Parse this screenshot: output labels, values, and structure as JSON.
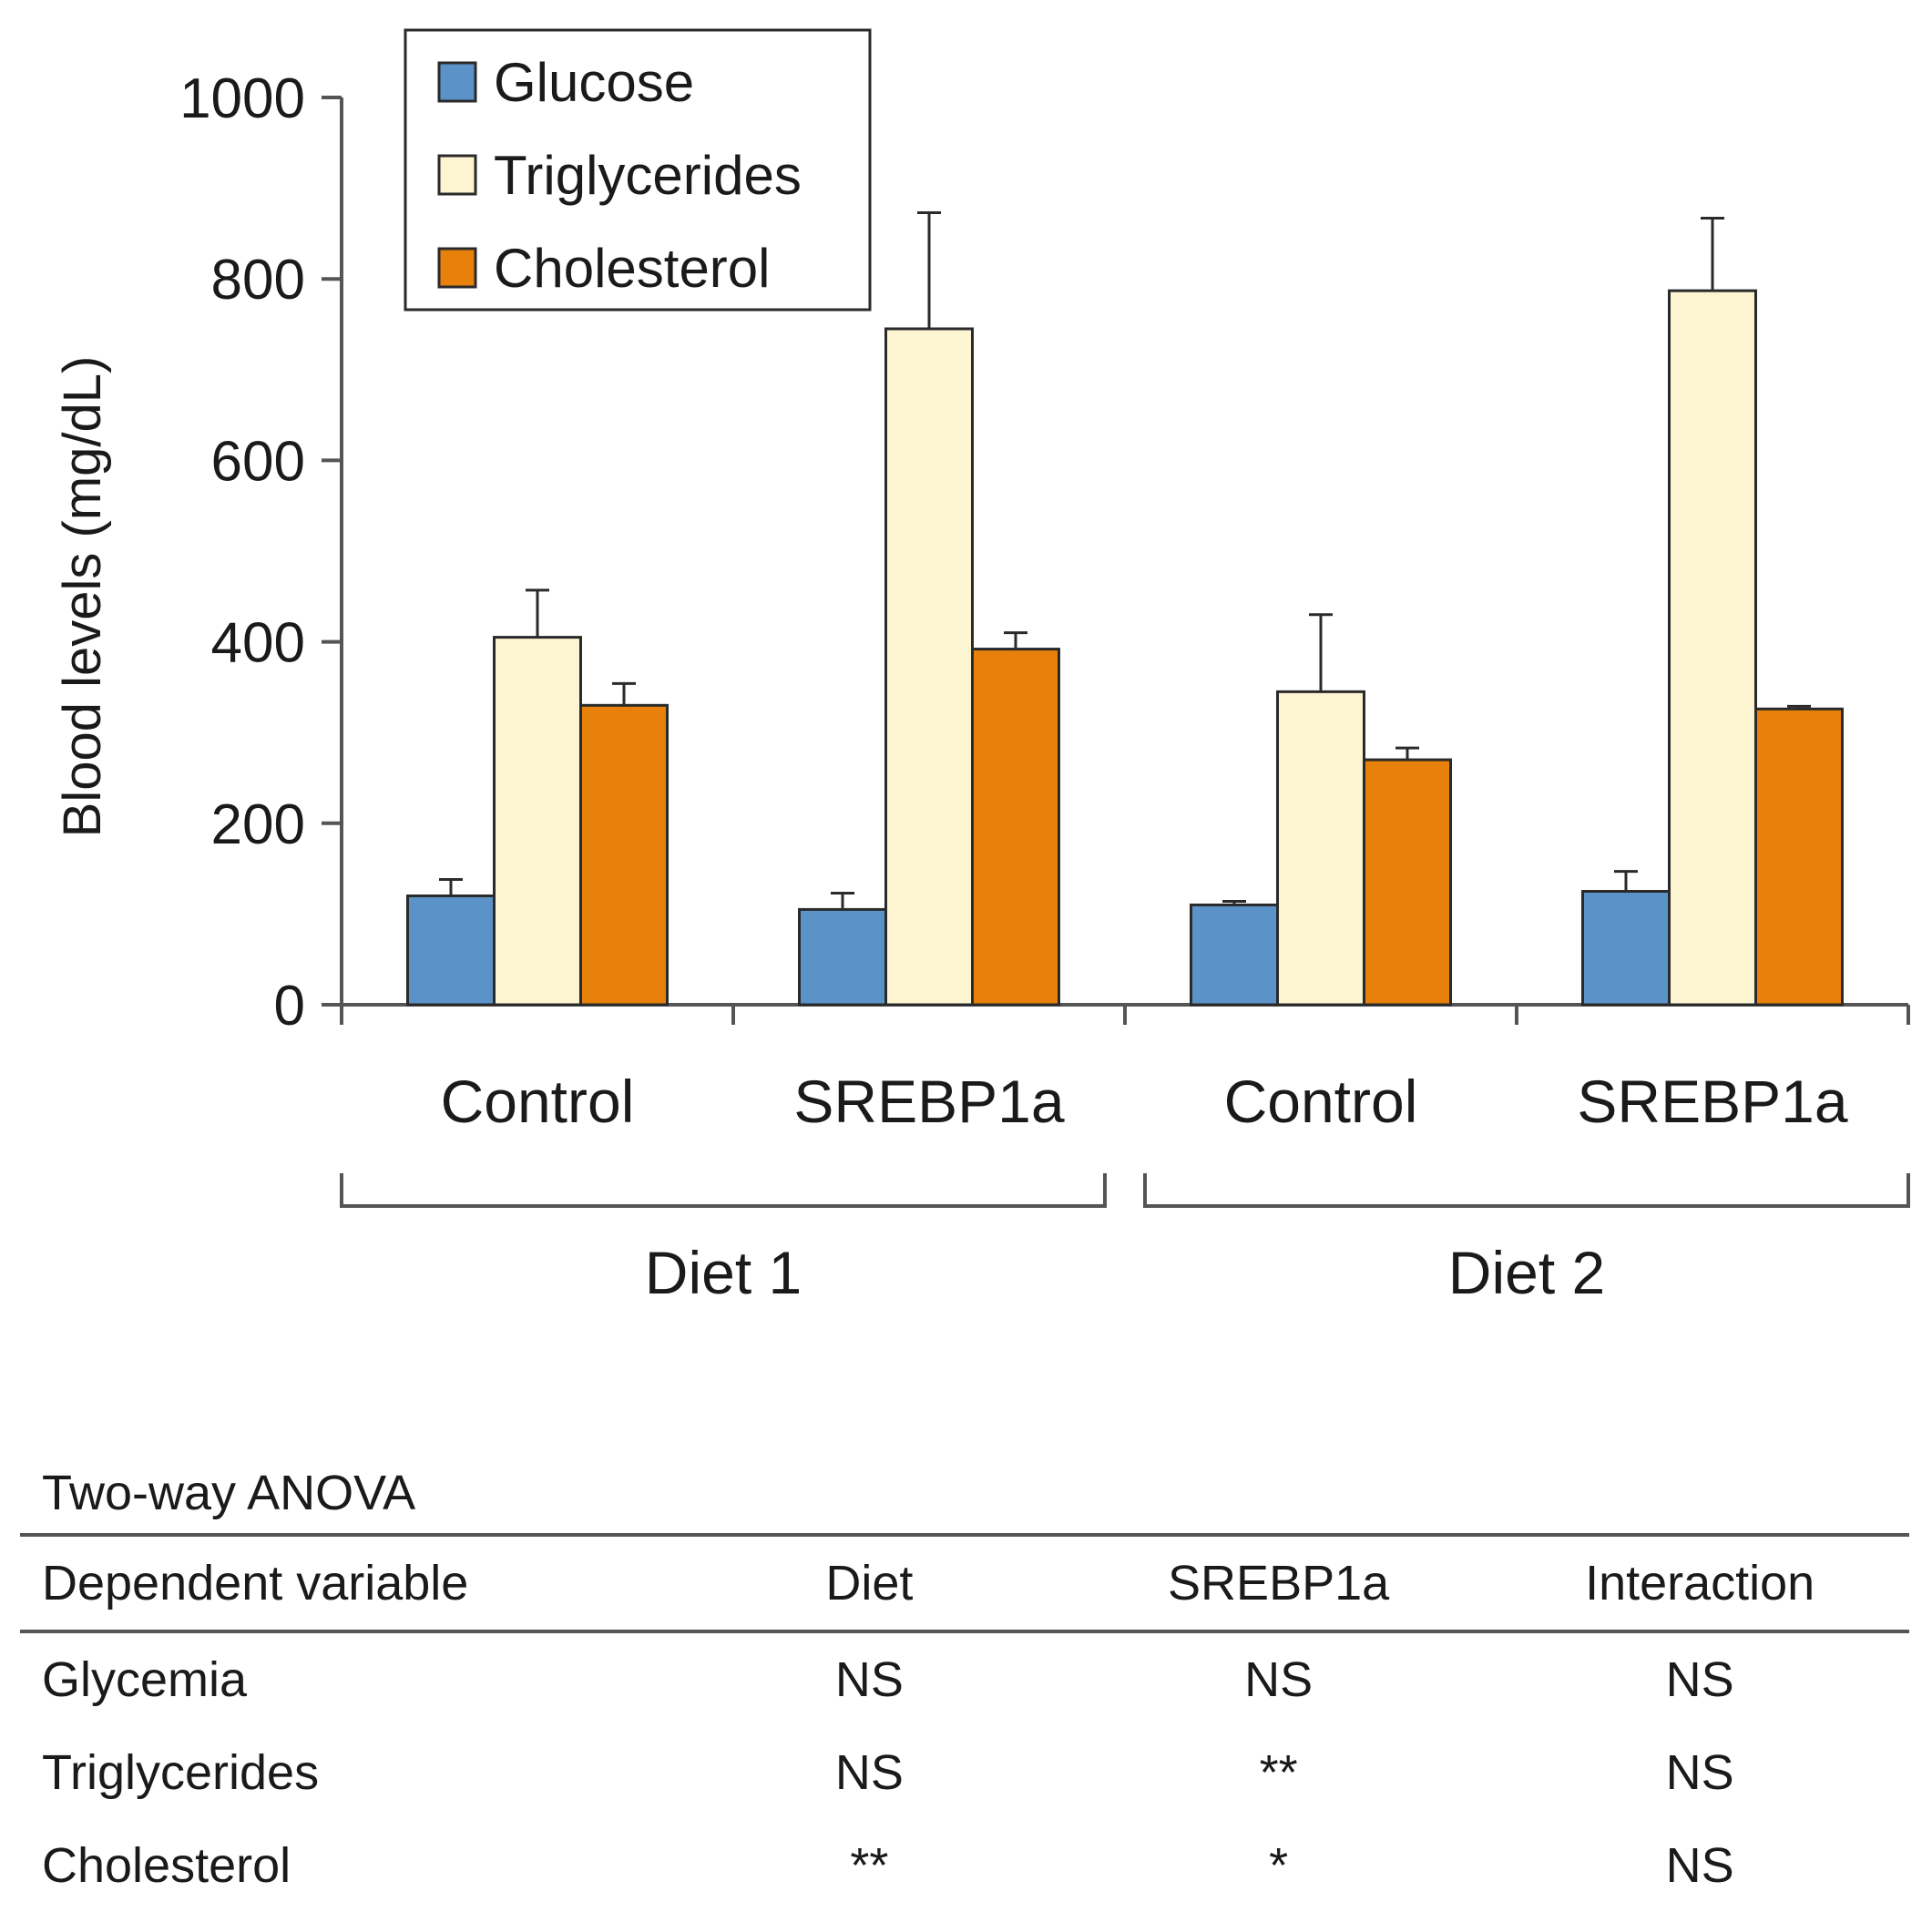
{
  "chart_data": {
    "type": "bar",
    "categories": [
      "Control",
      "SREBP1a",
      "Control",
      "SREBP1a"
    ],
    "groups": [
      {
        "label": "Diet 1",
        "categories": [
          0,
          1
        ]
      },
      {
        "label": "Diet 2",
        "categories": [
          2,
          3
        ]
      }
    ],
    "series": [
      {
        "name": "Glucose",
        "color": "#5b93c8",
        "values": [
          120,
          105,
          110,
          125
        ],
        "errors": [
          18,
          18,
          4,
          22
        ]
      },
      {
        "name": "Triglycerides",
        "color": "#fdf5d2",
        "values": [
          405,
          745,
          345,
          787
        ],
        "errors": [
          52,
          128,
          85,
          80
        ]
      },
      {
        "name": "Cholesterol",
        "color": "#e8800c",
        "values": [
          330,
          392,
          270,
          326
        ],
        "errors": [
          24,
          18,
          13,
          3
        ]
      }
    ],
    "ylabel": "Blood levels (mg/dL)",
    "ylim": [
      0,
      1000
    ],
    "yticks": [
      0,
      200,
      400,
      600,
      800,
      1000
    ],
    "legend_position": "top-left",
    "grid": false
  },
  "anova": {
    "title": "Two-way ANOVA",
    "headers": [
      "Dependent variable",
      "Diet",
      "SREBP1a",
      "Interaction"
    ],
    "rows": [
      [
        "Glycemia",
        "NS",
        "NS",
        "NS"
      ],
      [
        "Triglycerides",
        "NS",
        "**",
        "NS"
      ],
      [
        "Cholesterol",
        "**",
        "*",
        "NS"
      ]
    ]
  }
}
